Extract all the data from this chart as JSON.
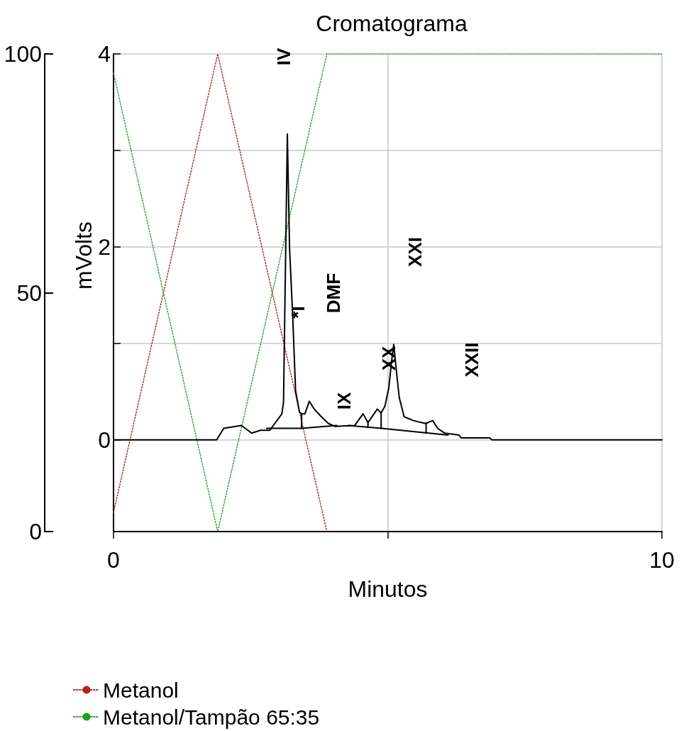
{
  "chart_data": {
    "type": "line",
    "title": "Cromatograma",
    "xlabel": "Minutos",
    "ylabel": "mVolts",
    "xlim": [
      0,
      10
    ],
    "xticks": [
      0,
      {
        "value": 5,
        "label": null
      },
      10
    ],
    "ylim": [
      -0.95,
      4
    ],
    "yticks": [
      {
        "value": -0.95,
        "label": null
      },
      0,
      {
        "value": 1,
        "label": null
      },
      2,
      {
        "value": 3,
        "label": null
      },
      4
    ],
    "y2lim": [
      0,
      100
    ],
    "y2ticks": [
      0,
      50,
      100
    ],
    "grid": true,
    "legend": "bottom left",
    "marker": "none",
    "series": [
      {
        "color": "#000000",
        "line_style": "solid",
        "x": [
          0,
          1.88,
          2.01,
          2.33,
          2.52,
          2.68,
          2.85,
          3.07,
          3.1,
          3.17,
          3.21,
          3.27,
          3.32,
          3.39,
          3.43,
          3.49,
          3.57,
          3.66,
          3.79,
          3.92,
          4.04,
          4.4,
          4.55,
          4.64,
          4.81,
          4.88,
          4.95,
          5.02,
          5.07,
          5.11,
          5.15,
          5.21,
          5.3,
          5.47,
          5.69,
          5.82,
          5.91,
          6.04,
          6.3,
          6.34,
          6.86,
          6.9,
          10
        ],
        "values": [
          0,
          0,
          0.12,
          0.15,
          0.07,
          0.1,
          0.1,
          0.27,
          0.39,
          3.17,
          1.99,
          1.25,
          0.51,
          0.29,
          0.27,
          0.27,
          0.4,
          0.32,
          0.24,
          0.17,
          0.14,
          0.15,
          0.27,
          0.18,
          0.32,
          0.28,
          0.35,
          0.54,
          0.81,
          0.99,
          0.76,
          0.44,
          0.24,
          0.2,
          0.17,
          0.2,
          0.12,
          0.07,
          0.05,
          0.02,
          0.02,
          0,
          0
        ]
      },
      {
        "color": "#000000",
        "line_style": "solid",
        "x": [
          2.79,
          3.43,
          4.07
        ],
        "values": [
          0.12,
          0.12,
          0.15
        ]
      },
      {
        "color": "#000000",
        "line_style": "solid",
        "x": [
          4.28,
          4.88,
          6.1
        ],
        "values": [
          0.15,
          0.12,
          0.05
        ]
      },
      {
        "color": "#000000",
        "line_style": "solid",
        "x": [
          3.43,
          3.43
        ],
        "values": [
          0.12,
          0.27
        ]
      },
      {
        "color": "#000000",
        "line_style": "solid",
        "x": [
          4.64,
          4.64
        ],
        "values": [
          0.13,
          0.18
        ]
      },
      {
        "color": "#000000",
        "line_style": "solid",
        "x": [
          4.88,
          4.88
        ],
        "values": [
          0.12,
          0.28
        ]
      },
      {
        "color": "#000000",
        "line_style": "solid",
        "x": [
          5.7,
          5.7
        ],
        "values": [
          0.07,
          0.17
        ]
      },
      {
        "name": "Metanol",
        "color": "#b22222",
        "axis": "y2",
        "line_style": "dotted",
        "x": [
          0,
          1.9,
          3.89
        ],
        "values": [
          4,
          100,
          0
        ]
      },
      {
        "name": "Metanol/Tampão 65:35",
        "color": "#22a022",
        "axis": "y2",
        "line_style": "dotted",
        "x": [
          0,
          1.9,
          3.89,
          10
        ],
        "values": [
          96,
          0,
          100,
          100
        ]
      }
    ],
    "annotations": [
      "IV",
      "*I",
      "DMF",
      "IX",
      "XX",
      "XXI",
      "XXII"
    ]
  }
}
